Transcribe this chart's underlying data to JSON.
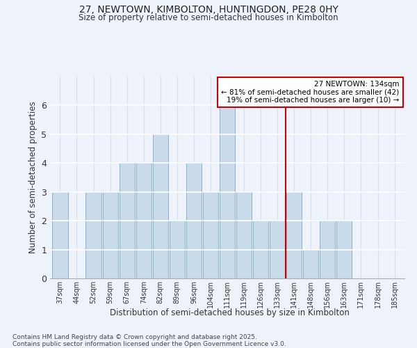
{
  "title1": "27, NEWTOWN, KIMBOLTON, HUNTINGDON, PE28 0HY",
  "title2": "Size of property relative to semi-detached houses in Kimbolton",
  "xlabel": "Distribution of semi-detached houses by size in Kimbolton",
  "ylabel": "Number of semi-detached properties",
  "categories": [
    "37sqm",
    "44sqm",
    "52sqm",
    "59sqm",
    "67sqm",
    "74sqm",
    "82sqm",
    "89sqm",
    "96sqm",
    "104sqm",
    "111sqm",
    "119sqm",
    "126sqm",
    "133sqm",
    "141sqm",
    "148sqm",
    "156sqm",
    "163sqm",
    "171sqm",
    "178sqm",
    "185sqm"
  ],
  "values": [
    3,
    0,
    3,
    3,
    4,
    4,
    5,
    2,
    4,
    3,
    6,
    3,
    2,
    2,
    3,
    1,
    2,
    2,
    0,
    0,
    0
  ],
  "bar_color": "#c9daea",
  "bar_edge_color": "#7aaac8",
  "background_color": "#eef2fb",
  "grid_color": "#d8dff0",
  "vline_x_index": 13.5,
  "vline_color": "#cc0000",
  "annotation_title": "27 NEWTOWN: 134sqm",
  "annotation_line1": "← 81% of semi-detached houses are smaller (42)",
  "annotation_line2": "19% of semi-detached houses are larger (10) →",
  "annotation_box_facecolor": "#ffffff",
  "annotation_box_edgecolor": "#cc0000",
  "footer1": "Contains HM Land Registry data © Crown copyright and database right 2025.",
  "footer2": "Contains public sector information licensed under the Open Government Licence v3.0.",
  "ylim": [
    0,
    7
  ],
  "yticks": [
    0,
    1,
    2,
    3,
    4,
    5,
    6
  ]
}
